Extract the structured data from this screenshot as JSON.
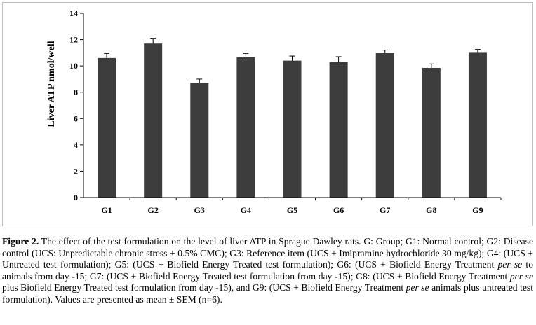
{
  "chart_data": {
    "type": "bar",
    "ylabel": "Liver ATP nmol/well",
    "categories": [
      "G1",
      "G2",
      "G3",
      "G4",
      "G5",
      "G6",
      "G7",
      "G8",
      "G9"
    ],
    "values": [
      10.6,
      11.7,
      8.7,
      10.65,
      10.4,
      10.3,
      11.0,
      9.85,
      11.05
    ],
    "errors": [
      0.35,
      0.4,
      0.3,
      0.3,
      0.35,
      0.4,
      0.2,
      0.3,
      0.2
    ],
    "ylim": [
      0,
      14
    ],
    "yticks": [
      "0",
      "2",
      "4",
      "6",
      "8",
      "10",
      "12",
      "14"
    ],
    "bar_color": "#3d3d3d",
    "grid": false
  },
  "caption": {
    "label": "Figure 2.",
    "text": " The effect of the test formulation on the level of liver ATP in Sprague Dawley rats. G: Group; G1: Normal control; G2: Disease control (UCS: Unpredictable chronic stress + 0.5% CMC); G3: Reference item (UCS + Imipramine hydrochloride 30 mg/kg); G4: (UCS + Untreated test formulation); G5: (UCS + Biofield Energy Treated test formulation); G6: (UCS + Biofield Energy Treatment ",
    "it1": "per se",
    "t2": " to animals from day -15; G7: (UCS + Biofield Energy Treated test formulation from day -15); G8: (UCS + Biofield Energy Treatment ",
    "it2": "per se",
    "t3": " plus Biofield Energy Treated test formulation from day -15), and G9: (UCS + Biofield Energy Treatment ",
    "it3": "per se",
    "t4": " animals plus untreated test formulation). Values are presented as mean ± SEM (n=6)."
  }
}
